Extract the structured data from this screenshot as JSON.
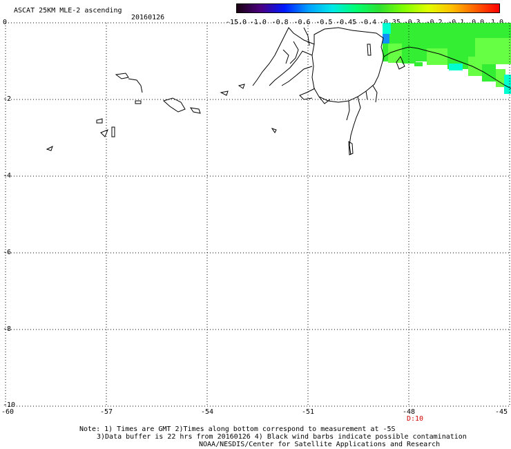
{
  "map": {
    "title": "ASCAT 25KM MLE-2 ascending",
    "date": "20160126",
    "lon_range": [
      -60,
      -45
    ],
    "lat_range": [
      -10,
      0
    ],
    "lat_ticks": [
      "0",
      "-2",
      "-4",
      "-6",
      "-8",
      "-10"
    ],
    "lon_ticks": [
      "-60",
      "-57",
      "-54",
      "-51",
      "-48",
      "-45"
    ],
    "time_label": "D:10",
    "colorbar_labels": [
      "-15.0",
      "-1.0",
      "-0.8",
      "-0.6",
      "-0.5",
      "-0.45",
      "-0.4",
      "-0.35",
      "-0.3",
      "-0.2",
      "-0.1",
      "0.0",
      "1.0"
    ],
    "colorbar_colors": [
      "#1a0010",
      "#4a0080",
      "#0018ff",
      "#00a0ff",
      "#00e8e8",
      "#00ff70",
      "#30e030",
      "#80ff00",
      "#e0ff00",
      "#ffc000",
      "#ff6000",
      "#ff0000"
    ],
    "data_colors": {
      "green": "#33ee33",
      "lightgreen": "#66ff44",
      "cyan": "#00ffd0",
      "blue": "#1090ff"
    }
  },
  "notes": {
    "line1": "Note: 1) Times are GMT 2)Times along bottom correspond to measurement at -5S",
    "line2": "3)Data buffer is 22 hrs from 20160126 4) Black wind barbs indicate possible contamination",
    "line3": "NOAA/NESDIS/Center for Satellite Applications and Research"
  }
}
